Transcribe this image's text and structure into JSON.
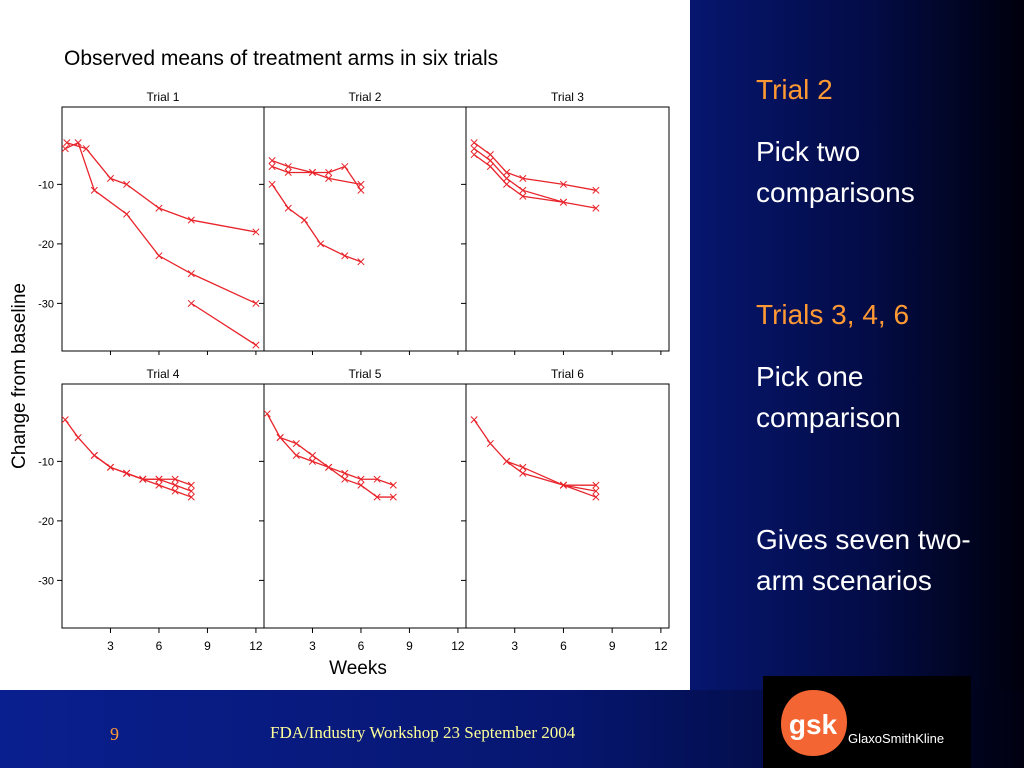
{
  "slide": {
    "right_text": {
      "trial2_heading": "Trial 2",
      "trial2_body": "Pick two comparisons",
      "trials346_heading": "Trials 3, 4, 6",
      "trials346_body": "Pick one comparison",
      "summary": "Gives seven two-arm scenarios"
    },
    "footer": {
      "page_number": "9",
      "text": "FDA/Industry Workshop 23 September 2004"
    },
    "logo": {
      "mark": "gsk",
      "name": "GlaxoSmithKline",
      "color": "#f36633"
    }
  },
  "chart_data": {
    "type": "line",
    "title": "Observed means of treatment arms in six trials",
    "xlabel": "Weeks",
    "ylabel": "Change from baseline",
    "xlim": [
      0,
      12.5
    ],
    "ylim": [
      -38,
      3
    ],
    "xticks": [
      3,
      6,
      9,
      12
    ],
    "yticks": [
      -10,
      -20,
      -30
    ],
    "series_color": "#e8242b",
    "marker": "x",
    "panels": [
      {
        "title": "Trial 1",
        "series": [
          {
            "x": [
              0.2,
              1,
              2,
              4,
              6,
              8,
              12
            ],
            "y": [
              -4,
              -3,
              -11,
              -15,
              -22,
              -25,
              -30
            ]
          },
          {
            "x": [
              0.3,
              1.5,
              3,
              4,
              6,
              8,
              12
            ],
            "y": [
              -3,
              -4,
              -9,
              -10,
              -14,
              -16,
              -18
            ]
          },
          {
            "x": [
              8,
              12
            ],
            "y": [
              -30,
              -37
            ]
          }
        ]
      },
      {
        "title": "Trial 2",
        "series": [
          {
            "x": [
              0.5,
              1.5,
              3,
              4,
              6
            ],
            "y": [
              -6,
              -7,
              -8,
              -9,
              -10
            ]
          },
          {
            "x": [
              0.5,
              1.5,
              3,
              4,
              5,
              6
            ],
            "y": [
              -7,
              -8,
              -8,
              -8,
              -7,
              -11
            ]
          },
          {
            "x": [
              0.5,
              1.5,
              2.5,
              3.5,
              5,
              6
            ],
            "y": [
              -10,
              -14,
              -16,
              -20,
              -22,
              -23
            ]
          }
        ]
      },
      {
        "title": "Trial 3",
        "series": [
          {
            "x": [
              0.5,
              1.5,
              2.5,
              3.5,
              6,
              8
            ],
            "y": [
              -3,
              -5,
              -8,
              -9,
              -10,
              -11
            ]
          },
          {
            "x": [
              0.5,
              1.5,
              2.5,
              3.5,
              6,
              8
            ],
            "y": [
              -4,
              -6,
              -9,
              -11,
              -13,
              -14
            ]
          },
          {
            "x": [
              0.5,
              1.5,
              2.5,
              3.5,
              6
            ],
            "y": [
              -5,
              -7,
              -10,
              -12,
              -13
            ]
          }
        ]
      },
      {
        "title": "Trial 4",
        "series": [
          {
            "x": [
              0.2,
              1,
              2,
              3,
              4,
              5,
              6,
              7,
              8
            ],
            "y": [
              -3,
              -6,
              -9,
              -11,
              -12,
              -13,
              -14,
              -15,
              -16
            ]
          },
          {
            "x": [
              2,
              3,
              4,
              5,
              6,
              7,
              8
            ],
            "y": [
              -9,
              -11,
              -12,
              -13,
              -13,
              -13,
              -14
            ]
          },
          {
            "x": [
              4,
              5,
              6,
              7,
              8
            ],
            "y": [
              -12,
              -13,
              -13,
              -14,
              -15
            ]
          }
        ]
      },
      {
        "title": "Trial 5",
        "series": [
          {
            "x": [
              0.2,
              1,
              2,
              3,
              4,
              5,
              6,
              7,
              8
            ],
            "y": [
              -2,
              -6,
              -7,
              -9,
              -11,
              -13,
              -14,
              -16,
              -16
            ]
          },
          {
            "x": [
              1,
              2,
              3,
              4,
              5,
              6,
              7,
              8
            ],
            "y": [
              -6,
              -9,
              -10,
              -11,
              -12,
              -13,
              -13,
              -14
            ]
          }
        ]
      },
      {
        "title": "Trial 6",
        "series": [
          {
            "x": [
              0.5,
              1.5,
              2.5,
              3.5,
              6,
              8
            ],
            "y": [
              -3,
              -7,
              -10,
              -11,
              -14,
              -16
            ]
          },
          {
            "x": [
              2.5,
              3.5,
              6,
              8
            ],
            "y": [
              -10,
              -12,
              -14,
              -15
            ]
          },
          {
            "x": [
              6,
              8
            ],
            "y": [
              -14,
              -14
            ]
          }
        ]
      }
    ]
  }
}
